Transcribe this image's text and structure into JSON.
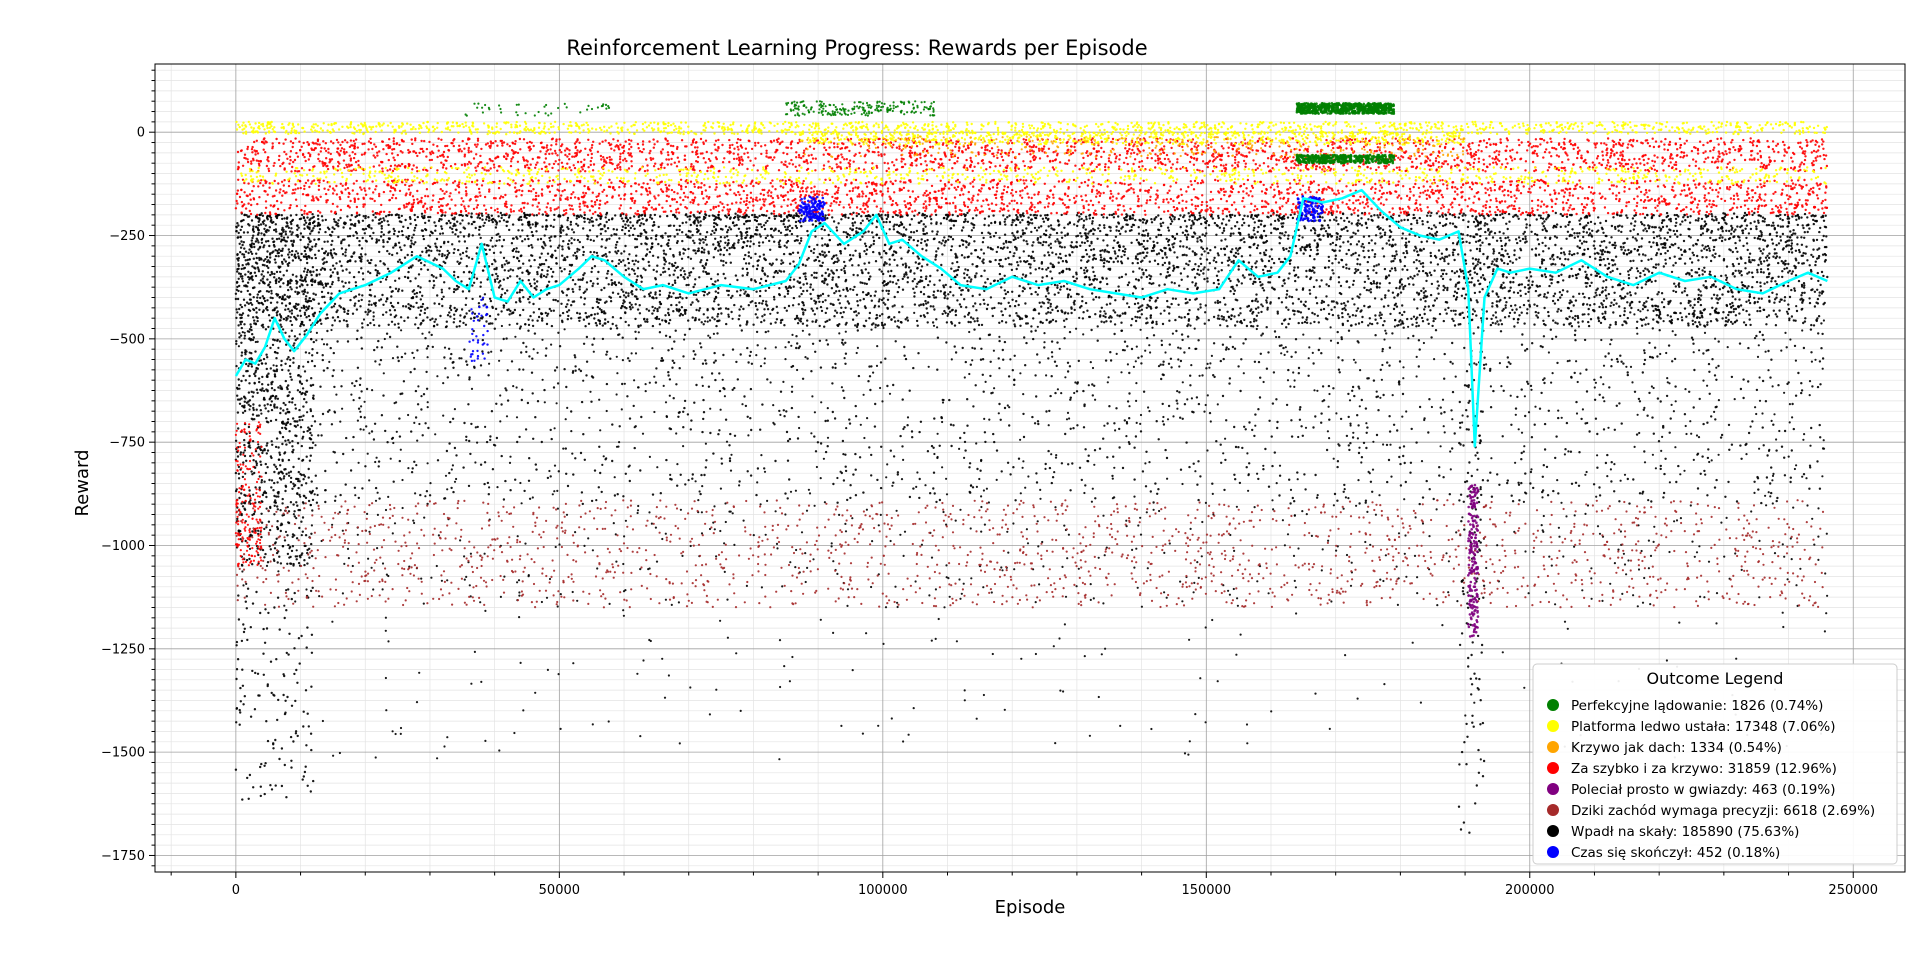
{
  "chart_data": {
    "type": "scatter",
    "title": "Reinforcement Learning Progress: Rewards per Episode",
    "xlabel": "Episode",
    "ylabel": "Reward",
    "xlim": [
      -12500,
      258000
    ],
    "ylim": [
      -1790,
      165
    ],
    "xticks": [
      0,
      50000,
      100000,
      150000,
      200000,
      250000
    ],
    "xtick_labels": [
      "0",
      "50000",
      "100000",
      "150000",
      "200000",
      "250000"
    ],
    "yticks": [
      0,
      -250,
      -500,
      -750,
      -1000,
      -1250,
      -1500,
      -1750
    ],
    "ytick_labels": [
      "0",
      "−250",
      "−500",
      "−750",
      "−1000",
      "−1250",
      "−1500",
      "−1750"
    ],
    "grid": true,
    "minor_grid": true,
    "legend": {
      "title": "Outcome Legend",
      "placement": "lower-right",
      "entries": [
        {
          "label": "Perfekcyjne lądowanie: 1826 (0.74%)",
          "color": "#008000"
        },
        {
          "label": "Platforma ledwo ustała: 17348 (7.06%)",
          "color": "#ffff00"
        },
        {
          "label": "Krzywo jak dach: 1334 (0.54%)",
          "color": "#ffa500"
        },
        {
          "label": "Za szybko i za krzywo: 31859 (12.96%)",
          "color": "#ff0000"
        },
        {
          "label": "Poleciał prosto w gwiazdy: 463 (0.19%)",
          "color": "#800080"
        },
        {
          "label": "Dziki zachód wymaga precyzji: 6618 (2.69%)",
          "color": "#a52a2a"
        },
        {
          "label": "Wpadł na skały: 185890 (75.63%)",
          "color": "#000000"
        },
        {
          "label": "Czas się skończył: 452 (0.18%)",
          "color": "#0000ff"
        }
      ]
    },
    "moving_average": {
      "color": "#00ffff",
      "x": [
        0,
        1500,
        3000,
        4500,
        6000,
        7500,
        9000,
        11000,
        13000,
        16000,
        20000,
        24000,
        28000,
        32000,
        34000,
        36000,
        38000,
        40000,
        42000,
        44000,
        46000,
        48000,
        50000,
        53000,
        55000,
        57000,
        60000,
        63000,
        66000,
        70000,
        75000,
        80000,
        85000,
        87000,
        89000,
        91000,
        94000,
        97000,
        99000,
        101000,
        103000,
        106000,
        109000,
        112000,
        116000,
        120000,
        124000,
        128000,
        132000,
        136000,
        140000,
        144000,
        148000,
        152000,
        155000,
        158000,
        161000,
        163000,
        165000,
        168000,
        171000,
        174000,
        177000,
        180000,
        183000,
        186000,
        189000,
        190500,
        191500,
        193000,
        195000,
        197000,
        200000,
        204000,
        208000,
        212000,
        216000,
        220000,
        224000,
        228000,
        232000,
        236000,
        240000,
        243000,
        246000
      ],
      "y": [
        -590,
        -550,
        -560,
        -520,
        -450,
        -500,
        -530,
        -490,
        -440,
        -390,
        -370,
        -340,
        -300,
        -330,
        -360,
        -380,
        -270,
        -400,
        -410,
        -360,
        -400,
        -380,
        -370,
        -330,
        -300,
        -310,
        -350,
        -380,
        -370,
        -390,
        -370,
        -380,
        -360,
        -320,
        -240,
        -220,
        -270,
        -240,
        -200,
        -270,
        -260,
        -300,
        -330,
        -370,
        -380,
        -350,
        -370,
        -360,
        -380,
        -390,
        -400,
        -380,
        -390,
        -380,
        -310,
        -350,
        -340,
        -300,
        -160,
        -170,
        -160,
        -140,
        -190,
        -230,
        -250,
        -260,
        -240,
        -380,
        -760,
        -400,
        -330,
        -340,
        -330,
        -340,
        -310,
        -350,
        -370,
        -340,
        -360,
        -350,
        -380,
        -390,
        -360,
        -340,
        -360
      ]
    }
  }
}
